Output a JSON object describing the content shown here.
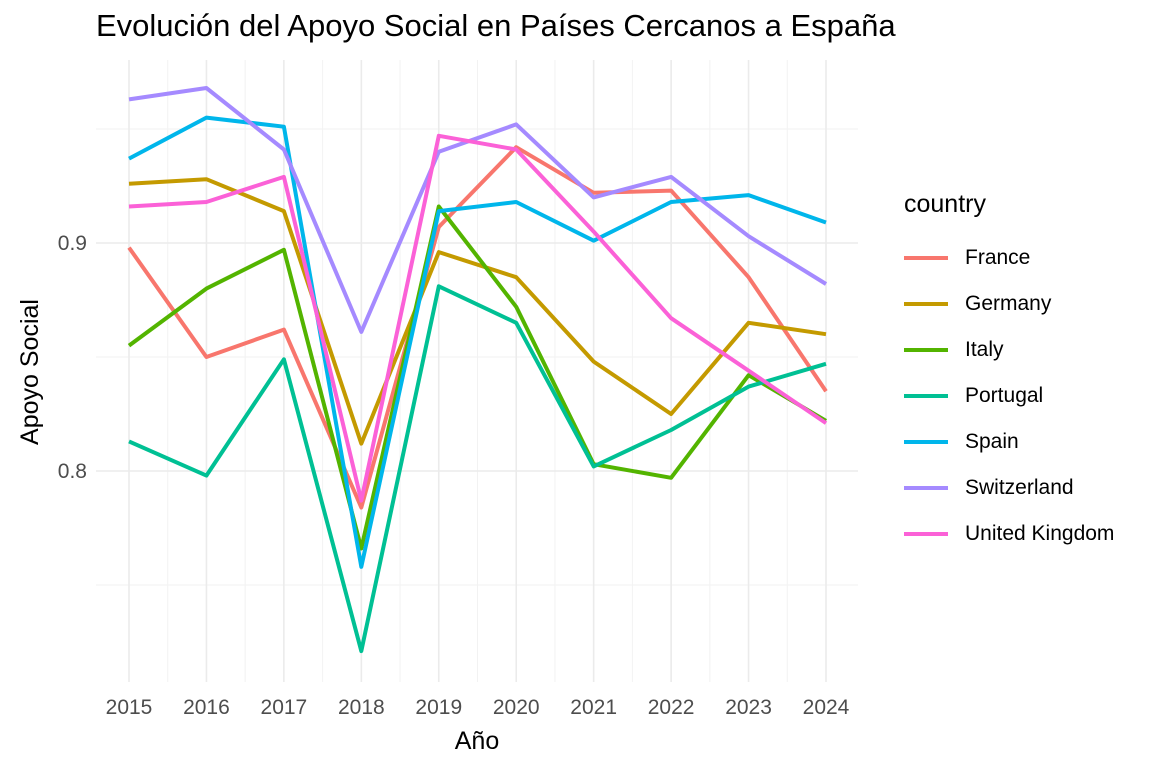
{
  "chart_data": {
    "type": "line",
    "title": "Evolución del Apoyo Social en Países Cercanos a España",
    "xlabel": "Año",
    "ylabel": "Apoyo Social",
    "legend_title": "country",
    "legend_position": "right",
    "grid": true,
    "x": [
      2015,
      2016,
      2017,
      2018,
      2019,
      2020,
      2021,
      2022,
      2023,
      2024
    ],
    "x_tick_labels": [
      "2015",
      "2016",
      "2017",
      "2018",
      "2019",
      "2020",
      "2021",
      "2022",
      "2023",
      "2024"
    ],
    "y_ticks": [
      0.8,
      0.9
    ],
    "y_tick_labels": [
      "0.8",
      "0.9"
    ],
    "ylim": [
      0.72,
      0.975
    ],
    "series": [
      {
        "name": "France",
        "color": "#F8766D",
        "values": [
          0.898,
          0.85,
          0.862,
          0.784,
          0.907,
          0.942,
          0.922,
          0.923,
          0.885,
          0.835
        ]
      },
      {
        "name": "Germany",
        "color": "#C49A00",
        "values": [
          0.926,
          0.928,
          0.914,
          0.812,
          0.896,
          0.885,
          0.848,
          0.825,
          0.865,
          0.86
        ]
      },
      {
        "name": "Italy",
        "color": "#53B400",
        "values": [
          0.855,
          0.88,
          0.897,
          0.766,
          0.916,
          0.872,
          0.803,
          0.797,
          0.842,
          0.822
        ]
      },
      {
        "name": "Portugal",
        "color": "#00C094",
        "values": [
          0.813,
          0.798,
          0.849,
          0.721,
          0.881,
          0.865,
          0.802,
          0.818,
          0.837,
          0.847
        ]
      },
      {
        "name": "Spain",
        "color": "#00B6EB",
        "values": [
          0.937,
          0.955,
          0.951,
          0.758,
          0.914,
          0.918,
          0.901,
          0.918,
          0.921,
          0.909
        ]
      },
      {
        "name": "Switzerland",
        "color": "#A58AFF",
        "values": [
          0.963,
          0.968,
          0.941,
          0.861,
          0.94,
          0.952,
          0.92,
          0.929,
          0.903,
          0.882
        ]
      },
      {
        "name": "United Kingdom",
        "color": "#FB61D7",
        "values": [
          0.916,
          0.918,
          0.929,
          0.787,
          0.947,
          0.941,
          0.905,
          0.867,
          0.844,
          0.821
        ]
      }
    ]
  }
}
